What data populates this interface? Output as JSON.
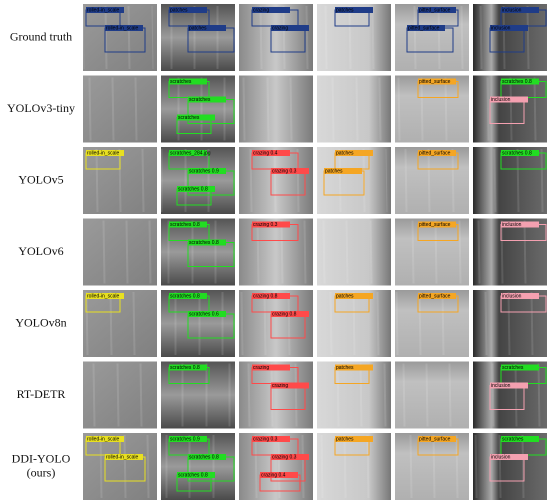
{
  "figure": {
    "rows": [
      {
        "label": [
          "Ground truth"
        ],
        "cells": [
          [
            {
              "label": "rolled-in_scale",
              "color": "#1f3c88"
            },
            {
              "label": "rolled-in_scale",
              "color": "#1f3c88"
            }
          ],
          [
            {
              "label": "patches",
              "color": "#1f3c88"
            },
            {
              "label": "patches",
              "color": "#1f3c88"
            }
          ],
          [
            {
              "label": "crazing",
              "color": "#1f3c88"
            },
            {
              "label": "crazing",
              "color": "#1f3c88"
            }
          ],
          [
            {
              "label": "patches",
              "color": "#1f3c88"
            }
          ],
          [
            {
              "label": "pitted_surface",
              "color": "#1f3c88"
            },
            {
              "label": "pitted_surface",
              "color": "#1f3c88"
            }
          ],
          [
            {
              "label": "inclusion",
              "color": "#1f3c88"
            },
            {
              "label": "inclusion",
              "color": "#1f3c88"
            }
          ]
        ]
      },
      {
        "label": [
          "YOLOv3-tiny"
        ],
        "cells": [
          [],
          [
            {
              "label": "scratches",
              "color": "#22dd22"
            },
            {
              "label": "scratches",
              "color": "#22dd22"
            },
            {
              "label": "scratches",
              "color": "#22dd22"
            }
          ],
          [],
          [],
          [
            {
              "label": "pitted_surface",
              "color": "#f5a623"
            }
          ],
          [
            {
              "label": "scratches 0.8",
              "color": "#22dd22"
            },
            {
              "label": "inclusion",
              "color": "#f4a0b0"
            }
          ]
        ]
      },
      {
        "label": [
          "YOLOv5"
        ],
        "cells": [
          [
            {
              "label": "rolled-in_scale",
              "color": "#e8e020"
            }
          ],
          [
            {
              "label": "scratches_284.jpg",
              "color": "#22dd22"
            },
            {
              "label": "scratches 0.9",
              "color": "#22dd22"
            },
            {
              "label": "scratches 0.8",
              "color": "#22dd22"
            }
          ],
          [
            {
              "label": "crazing 0.4",
              "color": "#ff4a4a"
            },
            {
              "label": "crazing 0.3",
              "color": "#ff4a4a"
            }
          ],
          [
            {
              "label": "patches",
              "color": "#f5a623"
            },
            {
              "label": "patches",
              "color": "#f5a623"
            }
          ],
          [
            {
              "label": "pitted_surface",
              "color": "#f5a623"
            }
          ],
          [
            {
              "label": "scratches 0.8",
              "color": "#22dd22"
            }
          ]
        ]
      },
      {
        "label": [
          "YOLOv6"
        ],
        "cells": [
          [],
          [
            {
              "label": "scratches 0.8",
              "color": "#22dd22"
            },
            {
              "label": "scratches 0.8",
              "color": "#22dd22"
            }
          ],
          [
            {
              "label": "crazing 0.3",
              "color": "#ff4a4a"
            }
          ],
          [],
          [
            {
              "label": "pitted_surface",
              "color": "#f5a623"
            }
          ],
          [
            {
              "label": "inclusion",
              "color": "#f4a0b0"
            }
          ]
        ]
      },
      {
        "label": [
          "YOLOv8n"
        ],
        "cells": [
          [
            {
              "label": "rolled-in_scale",
              "color": "#e8e020"
            }
          ],
          [
            {
              "label": "scratches 0.8",
              "color": "#22dd22"
            },
            {
              "label": "scratches 0.6",
              "color": "#22dd22"
            }
          ],
          [
            {
              "label": "crazing 0.8",
              "color": "#ff4a4a"
            },
            {
              "label": "crazing 0.8",
              "color": "#ff4a4a"
            }
          ],
          [
            {
              "label": "patches",
              "color": "#f5a623"
            }
          ],
          [
            {
              "label": "pitted_surface",
              "color": "#f5a623"
            }
          ],
          [
            {
              "label": "inclusion",
              "color": "#f4a0b0"
            }
          ]
        ]
      },
      {
        "label": [
          "RT-DETR"
        ],
        "cells": [
          [],
          [
            {
              "label": "scratches 0.8",
              "color": "#22dd22"
            }
          ],
          [
            {
              "label": "crazing",
              "color": "#ff4a4a"
            },
            {
              "label": "crazing",
              "color": "#ff4a4a"
            }
          ],
          [
            {
              "label": "patches",
              "color": "#f5a623"
            }
          ],
          [],
          [
            {
              "label": "scratches",
              "color": "#22dd22"
            },
            {
              "label": "inclusion",
              "color": "#f4a0b0"
            }
          ]
        ]
      },
      {
        "label": [
          "DDI-YOLO",
          "(ours)"
        ],
        "cells": [
          [
            {
              "label": "rolled-in_scale",
              "color": "#e8e020"
            },
            {
              "label": "rolled-in_scale",
              "color": "#e8e020"
            }
          ],
          [
            {
              "label": "scratches 0.9",
              "color": "#22dd22"
            },
            {
              "label": "scratches 0.8",
              "color": "#22dd22"
            },
            {
              "label": "scratches 0.8",
              "color": "#22dd22"
            }
          ],
          [
            {
              "label": "crazing 0.3",
              "color": "#ff4a4a"
            },
            {
              "label": "crazing 0.3",
              "color": "#ff4a4a"
            },
            {
              "label": "crazing 0.4",
              "color": "#ff4a4a"
            }
          ],
          [
            {
              "label": "patches",
              "color": "#f5a623"
            }
          ],
          [
            {
              "label": "pitted_surface",
              "color": "#f5a623"
            }
          ],
          [
            {
              "label": "scratches",
              "color": "#22dd22"
            },
            {
              "label": "inclusion",
              "color": "#f4a0b0"
            }
          ]
        ]
      }
    ]
  }
}
